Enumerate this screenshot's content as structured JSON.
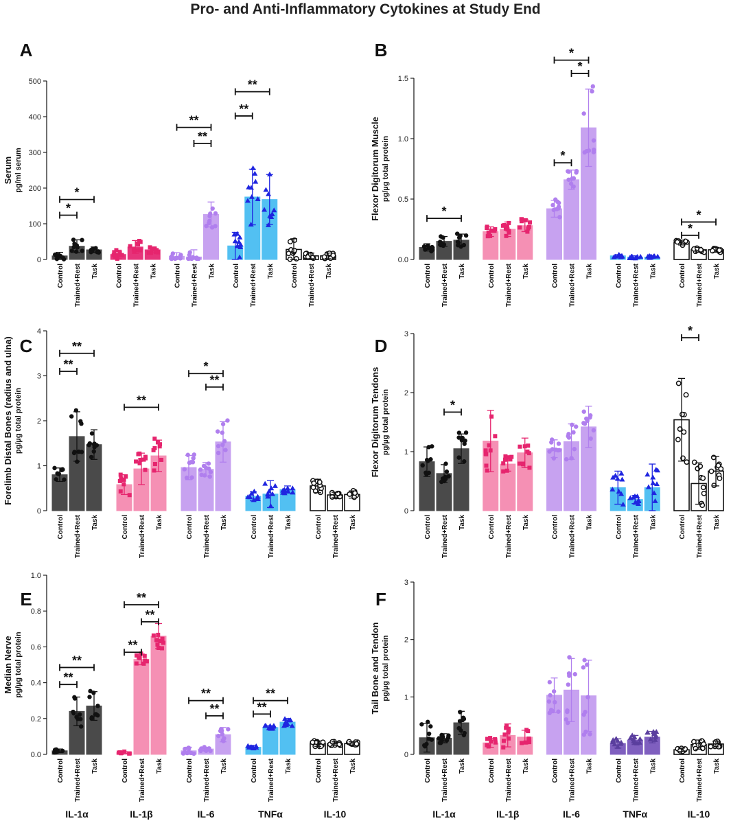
{
  "figure": {
    "title": "Pro- and Anti-Inflammatory Cytokines at Study End"
  },
  "colors": {
    "IL-1α": "#4a4a4a",
    "IL-1β": "#f590b4",
    "IL-1β_serum": "#e6337a",
    "IL-6": "#c7a2f0",
    "TNFα": "#52c0f2",
    "TNFα_tail": "#7f5fbf",
    "IL-10": "#ffffff",
    "dot_IL-1α": "#111111",
    "dot_IL-1β": "#e6256e",
    "dot_IL-6": "#b07fee",
    "dot_TNFα": "#1f25e0",
    "dot_TNFα_tail": "#5a3e9e",
    "dot_IL-10": "#111111"
  },
  "chart_data": [
    {
      "panel": "A",
      "type": "bar",
      "title": "",
      "ylabel": "Serum",
      "ylabel2": "pg/ml serum",
      "ylim": [
        0,
        500
      ],
      "yticks": [
        0,
        100,
        200,
        300,
        400,
        500
      ],
      "ytick_labels": [
        "0",
        "100",
        "200",
        "300",
        "400",
        "500"
      ],
      "groups": [
        "IL-1α",
        "IL-1β",
        "IL-6",
        "TNFα",
        "IL-10"
      ],
      "categories": [
        "Control",
        "Trained+Rest",
        "Task"
      ],
      "series": [
        {
          "name": "IL-1α",
          "values": [
            10,
            37,
            27
          ],
          "errors": [
            10,
            18,
            8
          ]
        },
        {
          "name": "IL-1β",
          "values": [
            14,
            35,
            27
          ],
          "errors": [
            12,
            18,
            8
          ]
        },
        {
          "name": "IL-6",
          "values": [
            9,
            7,
            126
          ],
          "errors": [
            10,
            20,
            35
          ]
        },
        {
          "name": "TNFα",
          "values": [
            38,
            175,
            168
          ],
          "errors": [
            38,
            78,
            70
          ]
        },
        {
          "name": "IL-10",
          "values": [
            28,
            10,
            10
          ],
          "errors": [
            30,
            8,
            8
          ]
        }
      ],
      "significance": [
        {
          "group": 0,
          "from": 0,
          "to": 1,
          "label": "*",
          "y": 124
        },
        {
          "group": 0,
          "from": 0,
          "to": 2,
          "label": "*",
          "y": 168
        },
        {
          "group": 2,
          "from": 1,
          "to": 2,
          "label": "**",
          "y": 325
        },
        {
          "group": 2,
          "from": 0,
          "to": 2,
          "label": "**",
          "y": 370
        },
        {
          "group": 3,
          "from": 0,
          "to": 1,
          "label": "**",
          "y": 402
        },
        {
          "group": 3,
          "from": 0,
          "to": 2,
          "label": "**",
          "y": 470
        }
      ],
      "show_xlabels": false
    },
    {
      "panel": "B",
      "type": "bar",
      "title": "",
      "ylabel": "Flexor Digitorum Muscle",
      "ylabel2": "pg/µg total protein",
      "ylim": [
        0,
        1.5
      ],
      "yticks": [
        0,
        0.5,
        1.0,
        1.5
      ],
      "ytick_labels": [
        "0.0",
        "0.5",
        "1.0",
        "1.5"
      ],
      "groups": [
        "IL-1α",
        "IL-1β",
        "IL-6",
        "TNFα",
        "IL-10"
      ],
      "categories": [
        "Control",
        "Trained+Rest",
        "Task"
      ],
      "series": [
        {
          "name": "IL-1α",
          "values": [
            0.1,
            0.15,
            0.16
          ],
          "errors": [
            0.03,
            0.04,
            0.05
          ]
        },
        {
          "name": "IL-1β",
          "values": [
            0.23,
            0.25,
            0.28
          ],
          "errors": [
            0.04,
            0.06,
            0.05
          ]
        },
        {
          "name": "IL-6",
          "values": [
            0.42,
            0.66,
            1.09
          ],
          "errors": [
            0.07,
            0.08,
            0.32
          ]
        },
        {
          "name": "TNFα",
          "values": [
            0.03,
            0.02,
            0.02
          ],
          "errors": [
            0.01,
            0.01,
            0.01
          ]
        },
        {
          "name": "IL-10",
          "values": [
            0.14,
            0.08,
            0.08
          ],
          "errors": [
            0.02,
            0.02,
            0.02
          ]
        }
      ],
      "significance": [
        {
          "group": 0,
          "from": 0,
          "to": 2,
          "label": "*",
          "y": 0.34
        },
        {
          "group": 2,
          "from": 0,
          "to": 1,
          "label": "*",
          "y": 0.8
        },
        {
          "group": 2,
          "from": 1,
          "to": 2,
          "label": "*",
          "y": 1.54
        },
        {
          "group": 2,
          "from": 0,
          "to": 2,
          "label": "*",
          "y": 1.65
        },
        {
          "group": 4,
          "from": 0,
          "to": 1,
          "label": "*",
          "y": 0.2
        },
        {
          "group": 4,
          "from": 0,
          "to": 2,
          "label": "*",
          "y": 0.31
        }
      ],
      "show_xlabels": false
    },
    {
      "panel": "C",
      "type": "bar",
      "title": "",
      "ylabel": "Forelimb Distal Bones (radius and ulna)",
      "ylabel2": "pg/µg total protein",
      "ylim": [
        0,
        4
      ],
      "yticks": [
        0,
        1,
        2,
        3,
        4
      ],
      "ytick_labels": [
        "0",
        "1",
        "2",
        "3",
        "4"
      ],
      "groups": [
        "IL-1α",
        "IL-1β",
        "IL-6",
        "TNFα",
        "IL-10"
      ],
      "categories": [
        "Control",
        "Trained+Rest",
        "Task"
      ],
      "series": [
        {
          "name": "IL-1α",
          "values": [
            0.8,
            1.65,
            1.47
          ],
          "errors": [
            0.15,
            0.55,
            0.33
          ]
        },
        {
          "name": "IL-1β",
          "values": [
            0.58,
            0.93,
            1.22
          ],
          "errors": [
            0.22,
            0.35,
            0.35
          ]
        },
        {
          "name": "IL-6",
          "values": [
            0.96,
            0.92,
            1.53
          ],
          "errors": [
            0.27,
            0.15,
            0.45
          ]
        },
        {
          "name": "TNFα",
          "values": [
            0.32,
            0.37,
            0.47
          ],
          "errors": [
            0.1,
            0.3,
            0.08
          ]
        },
        {
          "name": "IL-10",
          "values": [
            0.55,
            0.35,
            0.36
          ],
          "errors": [
            0.15,
            0.06,
            0.08
          ]
        }
      ],
      "significance": [
        {
          "group": 0,
          "from": 0,
          "to": 1,
          "label": "**",
          "y": 3.1
        },
        {
          "group": 0,
          "from": 0,
          "to": 2,
          "label": "**",
          "y": 3.5
        },
        {
          "group": 1,
          "from": 0,
          "to": 2,
          "label": "**",
          "y": 2.3
        },
        {
          "group": 2,
          "from": 1,
          "to": 2,
          "label": "**",
          "y": 2.75
        },
        {
          "group": 2,
          "from": 0,
          "to": 2,
          "label": "*",
          "y": 3.05
        }
      ],
      "show_xlabels": false
    },
    {
      "panel": "D",
      "type": "bar",
      "title": "",
      "ylabel": "Flexor Digitorum Tendons",
      "ylabel2": "pg/µg total protein",
      "ylim": [
        0,
        3
      ],
      "yticks": [
        0,
        1,
        2,
        3
      ],
      "ytick_labels": [
        "0",
        "1",
        "2",
        "3"
      ],
      "groups": [
        "IL-1α",
        "IL-1β",
        "IL-6",
        "TNFα",
        "IL-10"
      ],
      "categories": [
        "Control",
        "Trained+Rest",
        "Task"
      ],
      "series": [
        {
          "name": "IL-1α",
          "values": [
            0.83,
            0.63,
            1.05
          ],
          "errors": [
            0.25,
            0.15,
            0.25
          ]
        },
        {
          "name": "IL-1β",
          "values": [
            1.18,
            0.79,
            0.98
          ],
          "errors": [
            0.52,
            0.12,
            0.25
          ]
        },
        {
          "name": "IL-6",
          "values": [
            1.05,
            1.17,
            1.42
          ],
          "errors": [
            0.15,
            0.3,
            0.35
          ]
        },
        {
          "name": "TNFα",
          "values": [
            0.39,
            0.19,
            0.39
          ],
          "errors": [
            0.28,
            0.07,
            0.4
          ]
        },
        {
          "name": "IL-10",
          "values": [
            1.54,
            0.46,
            0.67
          ],
          "errors": [
            0.7,
            0.35,
            0.25
          ]
        }
      ],
      "significance": [
        {
          "group": 0,
          "from": 1,
          "to": 2,
          "label": "*",
          "y": 1.67
        },
        {
          "group": 4,
          "from": 0,
          "to": 1,
          "label": "*",
          "y": 2.93
        }
      ],
      "show_xlabels": false
    },
    {
      "panel": "E",
      "type": "bar",
      "title": "",
      "ylabel": "Median Nerve",
      "ylabel2": "pg/µg total protein",
      "ylim": [
        0,
        1.0
      ],
      "yticks": [
        0,
        0.2,
        0.4,
        0.6,
        0.8,
        1.0
      ],
      "ytick_labels": [
        "0.0",
        "0.2",
        "0.4",
        "0.6",
        "0.8",
        "1.0"
      ],
      "groups": [
        "IL-1α",
        "IL-1β",
        "IL-6",
        "TNFα",
        "IL-10"
      ],
      "categories": [
        "Control",
        "Trained+Rest",
        "Task"
      ],
      "series": [
        {
          "name": "IL-1α",
          "values": [
            0.02,
            0.24,
            0.27
          ],
          "errors": [
            0.01,
            0.08,
            0.08
          ]
        },
        {
          "name": "IL-1β",
          "values": [
            0.01,
            0.53,
            0.66
          ],
          "errors": [
            0.005,
            0.03,
            0.07
          ]
        },
        {
          "name": "IL-6",
          "values": [
            0.02,
            0.03,
            0.11
          ],
          "errors": [
            0.02,
            0.01,
            0.04
          ]
        },
        {
          "name": "TNFα",
          "values": [
            0.04,
            0.15,
            0.18
          ],
          "errors": [
            0.01,
            0.01,
            0.02
          ]
        },
        {
          "name": "IL-10",
          "values": [
            0.06,
            0.06,
            0.06
          ],
          "errors": [
            0.015,
            0.01,
            0.01
          ]
        }
      ],
      "significance": [
        {
          "group": 0,
          "from": 0,
          "to": 1,
          "label": "**",
          "y": 0.39
        },
        {
          "group": 0,
          "from": 0,
          "to": 2,
          "label": "**",
          "y": 0.485
        },
        {
          "group": 1,
          "from": 0,
          "to": 1,
          "label": "**",
          "y": 0.57
        },
        {
          "group": 1,
          "from": 1,
          "to": 2,
          "label": "**",
          "y": 0.74
        },
        {
          "group": 1,
          "from": 0,
          "to": 2,
          "label": "**",
          "y": 0.835
        },
        {
          "group": 2,
          "from": 1,
          "to": 2,
          "label": "**",
          "y": 0.215
        },
        {
          "group": 2,
          "from": 0,
          "to": 2,
          "label": "**",
          "y": 0.3
        },
        {
          "group": 3,
          "from": 0,
          "to": 1,
          "label": "**",
          "y": 0.225
        },
        {
          "group": 3,
          "from": 0,
          "to": 2,
          "label": "**",
          "y": 0.3
        }
      ],
      "show_xlabels": true
    },
    {
      "panel": "F",
      "type": "bar",
      "title": "",
      "ylabel": "Tail Bone and Tendon",
      "ylabel2": "pg/µg total protein",
      "ylim": [
        0,
        3
      ],
      "yticks": [
        0,
        1,
        2,
        3
      ],
      "ytick_labels": [
        "0",
        "1",
        "2",
        "3"
      ],
      "groups": [
        "IL-1α",
        "IL-1β",
        "IL-6",
        "TNFα",
        "IL-10"
      ],
      "categories": [
        "Control",
        "Trained+Rest",
        "Task"
      ],
      "series": [
        {
          "name": "IL-1α",
          "values": [
            0.29,
            0.28,
            0.55
          ],
          "errors": [
            0.25,
            0.08,
            0.2
          ]
        },
        {
          "name": "IL-1β",
          "values": [
            0.2,
            0.33,
            0.3
          ],
          "errors": [
            0.08,
            0.2,
            0.12
          ]
        },
        {
          "name": "IL-6",
          "values": [
            1.03,
            1.12,
            1.02
          ],
          "errors": [
            0.3,
            0.55,
            0.62
          ]
        },
        {
          "name": "TNFα",
          "values": [
            0.19,
            0.25,
            0.3
          ],
          "errors": [
            0.08,
            0.08,
            0.1
          ]
        },
        {
          "name": "IL-10",
          "values": [
            0.08,
            0.17,
            0.18
          ],
          "errors": [
            0.03,
            0.08,
            0.05
          ]
        }
      ],
      "significance": [],
      "show_xlabels": true
    }
  ]
}
